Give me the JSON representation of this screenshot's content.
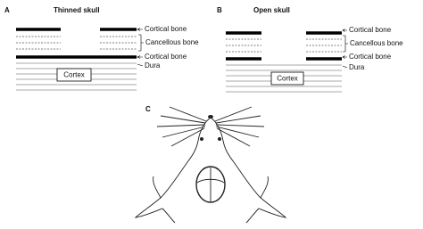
{
  "panels": [
    {
      "letter": "A",
      "title": "Thinned skull",
      "labels": [
        "Cortical bone",
        "Cancellous bone",
        "Cortical bone",
        "Dura"
      ],
      "box": "Cortex"
    },
    {
      "letter": "B",
      "title": "Open skull",
      "labels": [
        "Cortical bone",
        "Cancellous bone",
        "Cortical bone",
        "Dura"
      ],
      "box": "Cortex"
    },
    {
      "letter": "C"
    }
  ]
}
